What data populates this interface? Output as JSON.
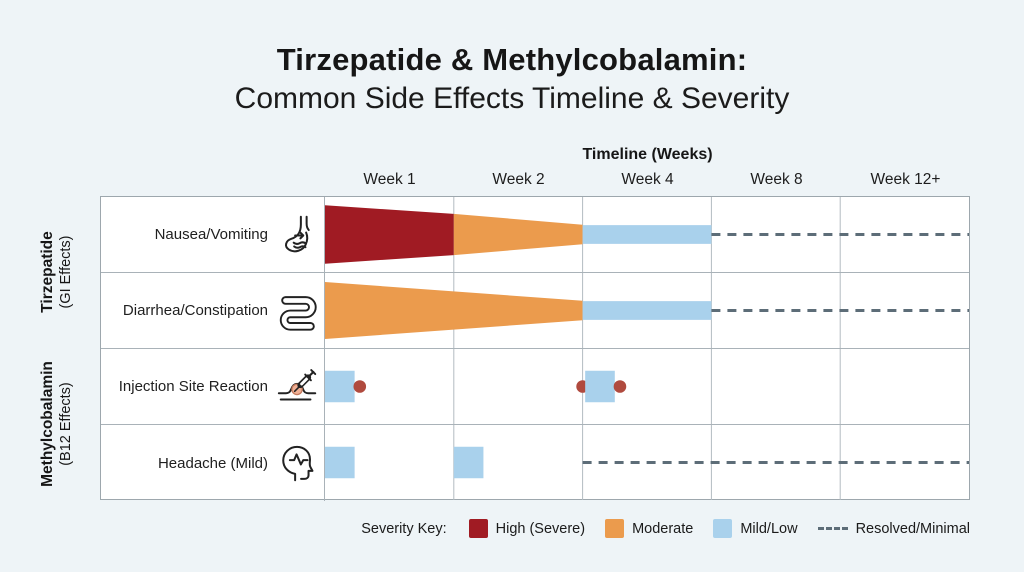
{
  "title": {
    "line1": "Tirzepatide & Methylcobalamin:",
    "line2": "Common Side Effects Timeline & Severity"
  },
  "timeline": {
    "axis_title": "Timeline (Weeks)",
    "weeks": [
      "Week 1",
      "Week 2",
      "Week 4",
      "Week 8",
      "Week 12+"
    ]
  },
  "groups": [
    {
      "name": "Tirzepatide",
      "sub": "(GI Effects)"
    },
    {
      "name": "Methylcobalamin",
      "sub": "(B12 Effects)"
    }
  ],
  "rows": [
    {
      "label": "Nausea/Vomiting",
      "icon": "stomach-icon"
    },
    {
      "label": "Diarrhea/Constipation",
      "icon": "intestine-icon"
    },
    {
      "label": "Injection Site Reaction",
      "icon": "syringe-icon"
    },
    {
      "label": "Headache (Mild)",
      "icon": "head-icon"
    }
  ],
  "legend": {
    "title": "Severity Key:",
    "items": [
      {
        "id": "high",
        "label": "High (Severe)",
        "color": "#a01b23",
        "type": "swatch"
      },
      {
        "id": "moderate",
        "label": "Moderate",
        "color": "#eb9b4d",
        "type": "swatch"
      },
      {
        "id": "mild",
        "label": "Mild/Low",
        "color": "#a9d1ec",
        "type": "swatch"
      },
      {
        "id": "resolved",
        "label": "Resolved/Minimal",
        "color": "#5d6d78",
        "type": "dash"
      }
    ]
  },
  "chart_data": {
    "type": "timeline-severity-gantt",
    "x_categories": [
      "Week 1",
      "Week 2",
      "Week 4",
      "Week 8",
      "Week 12+"
    ],
    "severity_scale": [
      "High (Severe)",
      "Moderate",
      "Mild/Low",
      "Resolved/Minimal"
    ],
    "dot_color": "#b04a3e",
    "grid": true,
    "series": [
      {
        "name": "Nausea/Vomiting",
        "group": "Tirzepatide (GI Effects)",
        "week_severity": {
          "Week 1": "High (Severe)",
          "Week 2": "Moderate",
          "Week 4": "Mild/Low",
          "Week 8": "Resolved/Minimal",
          "Week 12+": "Resolved/Minimal"
        },
        "marks": [
          {
            "type": "funnel",
            "x0": 0,
            "x1": 1,
            "h0": 0.78,
            "h1": 0.55,
            "severity": "high"
          },
          {
            "type": "funnel",
            "x0": 1,
            "x1": 2,
            "h0": 0.55,
            "h1": 0.26,
            "severity": "moderate"
          },
          {
            "type": "bar",
            "x0": 2,
            "x1": 3,
            "h": 0.25,
            "severity": "mild"
          },
          {
            "type": "dash",
            "x0": 3,
            "x1": 5
          }
        ]
      },
      {
        "name": "Diarrhea/Constipation",
        "group": "Tirzepatide (GI Effects)",
        "week_severity": {
          "Week 1": "Moderate",
          "Week 2": "Moderate",
          "Week 4": "Mild/Low",
          "Week 8": "Resolved/Minimal",
          "Week 12+": "Resolved/Minimal"
        },
        "marks": [
          {
            "type": "funnel",
            "x0": 0,
            "x1": 2,
            "h0": 0.76,
            "h1": 0.26,
            "severity": "moderate"
          },
          {
            "type": "bar",
            "x0": 2,
            "x1": 3,
            "h": 0.25,
            "severity": "mild"
          },
          {
            "type": "dash",
            "x0": 3,
            "x1": 5
          }
        ]
      },
      {
        "name": "Injection Site Reaction",
        "group": "Methylcobalamin (B12 Effects)",
        "week_severity": {
          "Week 1": "Mild/Low",
          "Week 4": "Mild/Low"
        },
        "marks": [
          {
            "type": "bar",
            "x0": 0,
            "x1": 0.23,
            "h": 0.42,
            "severity": "mild"
          },
          {
            "type": "dot",
            "x": 0.27
          },
          {
            "type": "dot",
            "x": 2.0
          },
          {
            "type": "bar",
            "x0": 2.02,
            "x1": 2.25,
            "h": 0.42,
            "severity": "mild"
          },
          {
            "type": "dot",
            "x": 2.29
          }
        ]
      },
      {
        "name": "Headache (Mild)",
        "group": "Methylcobalamin (B12 Effects)",
        "week_severity": {
          "Week 1": "Mild/Low",
          "Week 2": "Mild/Low",
          "Week 4": "Resolved/Minimal",
          "Week 8": "Resolved/Minimal",
          "Week 12+": "Resolved/Minimal"
        },
        "marks": [
          {
            "type": "bar",
            "x0": 0,
            "x1": 0.23,
            "h": 0.42,
            "severity": "mild"
          },
          {
            "type": "bar",
            "x0": 1.0,
            "x1": 1.23,
            "h": 0.42,
            "severity": "mild"
          },
          {
            "type": "dash",
            "x0": 2,
            "x1": 5
          }
        ]
      }
    ]
  }
}
